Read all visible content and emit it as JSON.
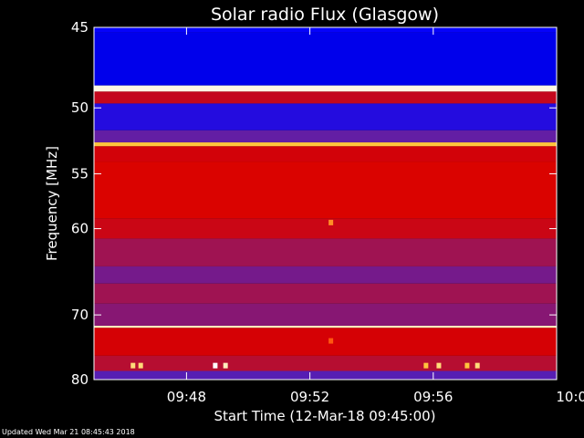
{
  "chart_data": {
    "type": "heatmap",
    "title": "Solar radio Flux (Glasgow)",
    "xlabel": "Start Time (12-Mar-18 09:45:00)",
    "ylabel": "Frequency [MHz]",
    "x_unit": "minutes",
    "xlim": [
      "09:45:00",
      "10:00:00"
    ],
    "ylim": [
      45,
      80
    ],
    "x_ticks": [
      {
        "value": "09:48",
        "label": "09:48"
      },
      {
        "value": "09:52",
        "label": "09:52"
      },
      {
        "value": "09:56",
        "label": "09:56"
      },
      {
        "value": "10:00",
        "label": "10:00"
      }
    ],
    "y_ticks": [
      {
        "value": 45,
        "label": "45"
      },
      {
        "value": 50,
        "label": "50"
      },
      {
        "value": 55,
        "label": "55"
      },
      {
        "value": 60,
        "label": "60"
      },
      {
        "value": 70,
        "label": "70"
      },
      {
        "value": 80,
        "label": "80"
      }
    ],
    "colormap": [
      "#000080",
      "#0000ff",
      "#5a1fb0",
      "#b0103a",
      "#d80000",
      "#ff3000",
      "#ffcc40",
      "#ffffff"
    ],
    "bands": [
      {
        "f0": 45.0,
        "f1": 45.3,
        "level": 0.15
      },
      {
        "f0": 45.3,
        "f1": 48.5,
        "level": 0.12
      },
      {
        "f0": 48.5,
        "f1": 48.9,
        "level": 0.98
      },
      {
        "f0": 48.9,
        "f1": 49.7,
        "level": 0.5
      },
      {
        "f0": 49.7,
        "f1": 51.6,
        "level": 0.2
      },
      {
        "f0": 51.6,
        "f1": 52.5,
        "level": 0.3
      },
      {
        "f0": 52.5,
        "f1": 52.8,
        "level": 0.85
      },
      {
        "f0": 52.8,
        "f1": 54.0,
        "level": 0.55
      },
      {
        "f0": 54.0,
        "f1": 59.0,
        "level": 0.58
      },
      {
        "f0": 59.0,
        "f1": 61.0,
        "level": 0.52
      },
      {
        "f0": 61.0,
        "f1": 64.0,
        "level": 0.4
      },
      {
        "f0": 64.0,
        "f1": 66.0,
        "level": 0.33
      },
      {
        "f0": 66.0,
        "f1": 68.5,
        "level": 0.4
      },
      {
        "f0": 68.5,
        "f1": 71.5,
        "level": 0.36
      },
      {
        "f0": 71.5,
        "f1": 71.8,
        "level": 0.95
      },
      {
        "f0": 71.8,
        "f1": 76.0,
        "level": 0.56
      },
      {
        "f0": 76.0,
        "f1": 78.5,
        "level": 0.45
      },
      {
        "f0": 78.5,
        "f1": 80.0,
        "level": 0.28
      }
    ],
    "bursts": [
      {
        "time": "09:46:15",
        "freq": 77.6,
        "level": 0.9
      },
      {
        "time": "09:46:30",
        "freq": 77.6,
        "level": 0.9
      },
      {
        "time": "09:48:55",
        "freq": 77.6,
        "level": 1.0
      },
      {
        "time": "09:49:15",
        "freq": 77.6,
        "level": 0.95
      },
      {
        "time": "09:52:40",
        "freq": 59.4,
        "level": 0.8
      },
      {
        "time": "09:52:40",
        "freq": 73.7,
        "level": 0.75
      },
      {
        "time": "09:55:45",
        "freq": 77.6,
        "level": 0.85
      },
      {
        "time": "09:56:10",
        "freq": 77.6,
        "level": 0.9
      },
      {
        "time": "09:57:05",
        "freq": 77.6,
        "level": 0.85
      },
      {
        "time": "09:57:25",
        "freq": 77.6,
        "level": 0.9
      }
    ],
    "grid": false,
    "legend": "none"
  },
  "footer": {
    "updated_text": "Updated Wed Mar 21 08:45:43 2018"
  }
}
